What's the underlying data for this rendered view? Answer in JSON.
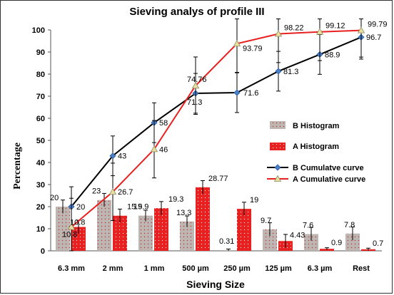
{
  "chart_data": {
    "type": "bar",
    "title": "Sieving analys of profile III",
    "xlabel": "Sieving Size",
    "ylabel": "Percentage",
    "ylim": [
      0,
      100
    ],
    "yticks": [
      0,
      10,
      20,
      30,
      40,
      50,
      60,
      70,
      80,
      90,
      100
    ],
    "categories": [
      "6.3 mm",
      "2 mm",
      "1 mm",
      "500 µm",
      "250 µm",
      "125 µm",
      "6.3 µm",
      "Rest"
    ],
    "bar_series": [
      {
        "name": "B Histogram",
        "color": "#b8b0ac",
        "dot_color": "#c03030",
        "values": [
          20,
          23,
          15.9,
          13.3,
          0.31,
          9.7,
          7.6,
          7.8
        ],
        "labels": [
          "20",
          "23",
          "15.9",
          "13.3",
          "0.31",
          "9.7",
          "7.6",
          "7.8"
        ],
        "errors": [
          3,
          3,
          2.5,
          2.5,
          0.5,
          3,
          3,
          3
        ]
      },
      {
        "name": "A Histogram",
        "color": "#e82020",
        "dot_color": "#ffffff",
        "values": [
          10.8,
          15.9,
          19.3,
          28.77,
          19,
          4.43,
          0.9,
          0.7
        ],
        "labels": [
          "10.8",
          "15.9",
          "19.3",
          "28.77",
          "19",
          "4.43",
          "0.9",
          "0.7"
        ],
        "errors": [
          3,
          3,
          3,
          3,
          3,
          3,
          0.5,
          0.5
        ]
      }
    ],
    "line_series": [
      {
        "name": "B Cumulatve curve",
        "color": "#000000",
        "marker_color": "#4a80c8",
        "marker": "diamond",
        "values": [
          20,
          43,
          58,
          71.3,
          71.6,
          81.3,
          88.9,
          96.7
        ],
        "labels": [
          "20",
          "43",
          "58",
          "71.3",
          "71.6",
          "81.3",
          "88.9",
          "96.7"
        ],
        "errors": [
          9,
          9,
          9,
          9,
          9,
          9,
          9,
          9
        ]
      },
      {
        "name": "A Cumulative curve",
        "color": "#e82020",
        "marker_color": "#e8e0a0",
        "marker": "triangle",
        "values": [
          10.8,
          26.7,
          46,
          74.76,
          93.79,
          98.22,
          99.12,
          99.79
        ],
        "labels": [
          "10.8",
          "26.7",
          "46",
          "74.76",
          "93.79",
          "98.22",
          "99.12",
          "99.79"
        ],
        "errors": [
          13,
          13,
          13,
          13,
          13,
          13,
          13,
          13
        ]
      }
    ],
    "legend_position": "right-center",
    "grid": false
  }
}
